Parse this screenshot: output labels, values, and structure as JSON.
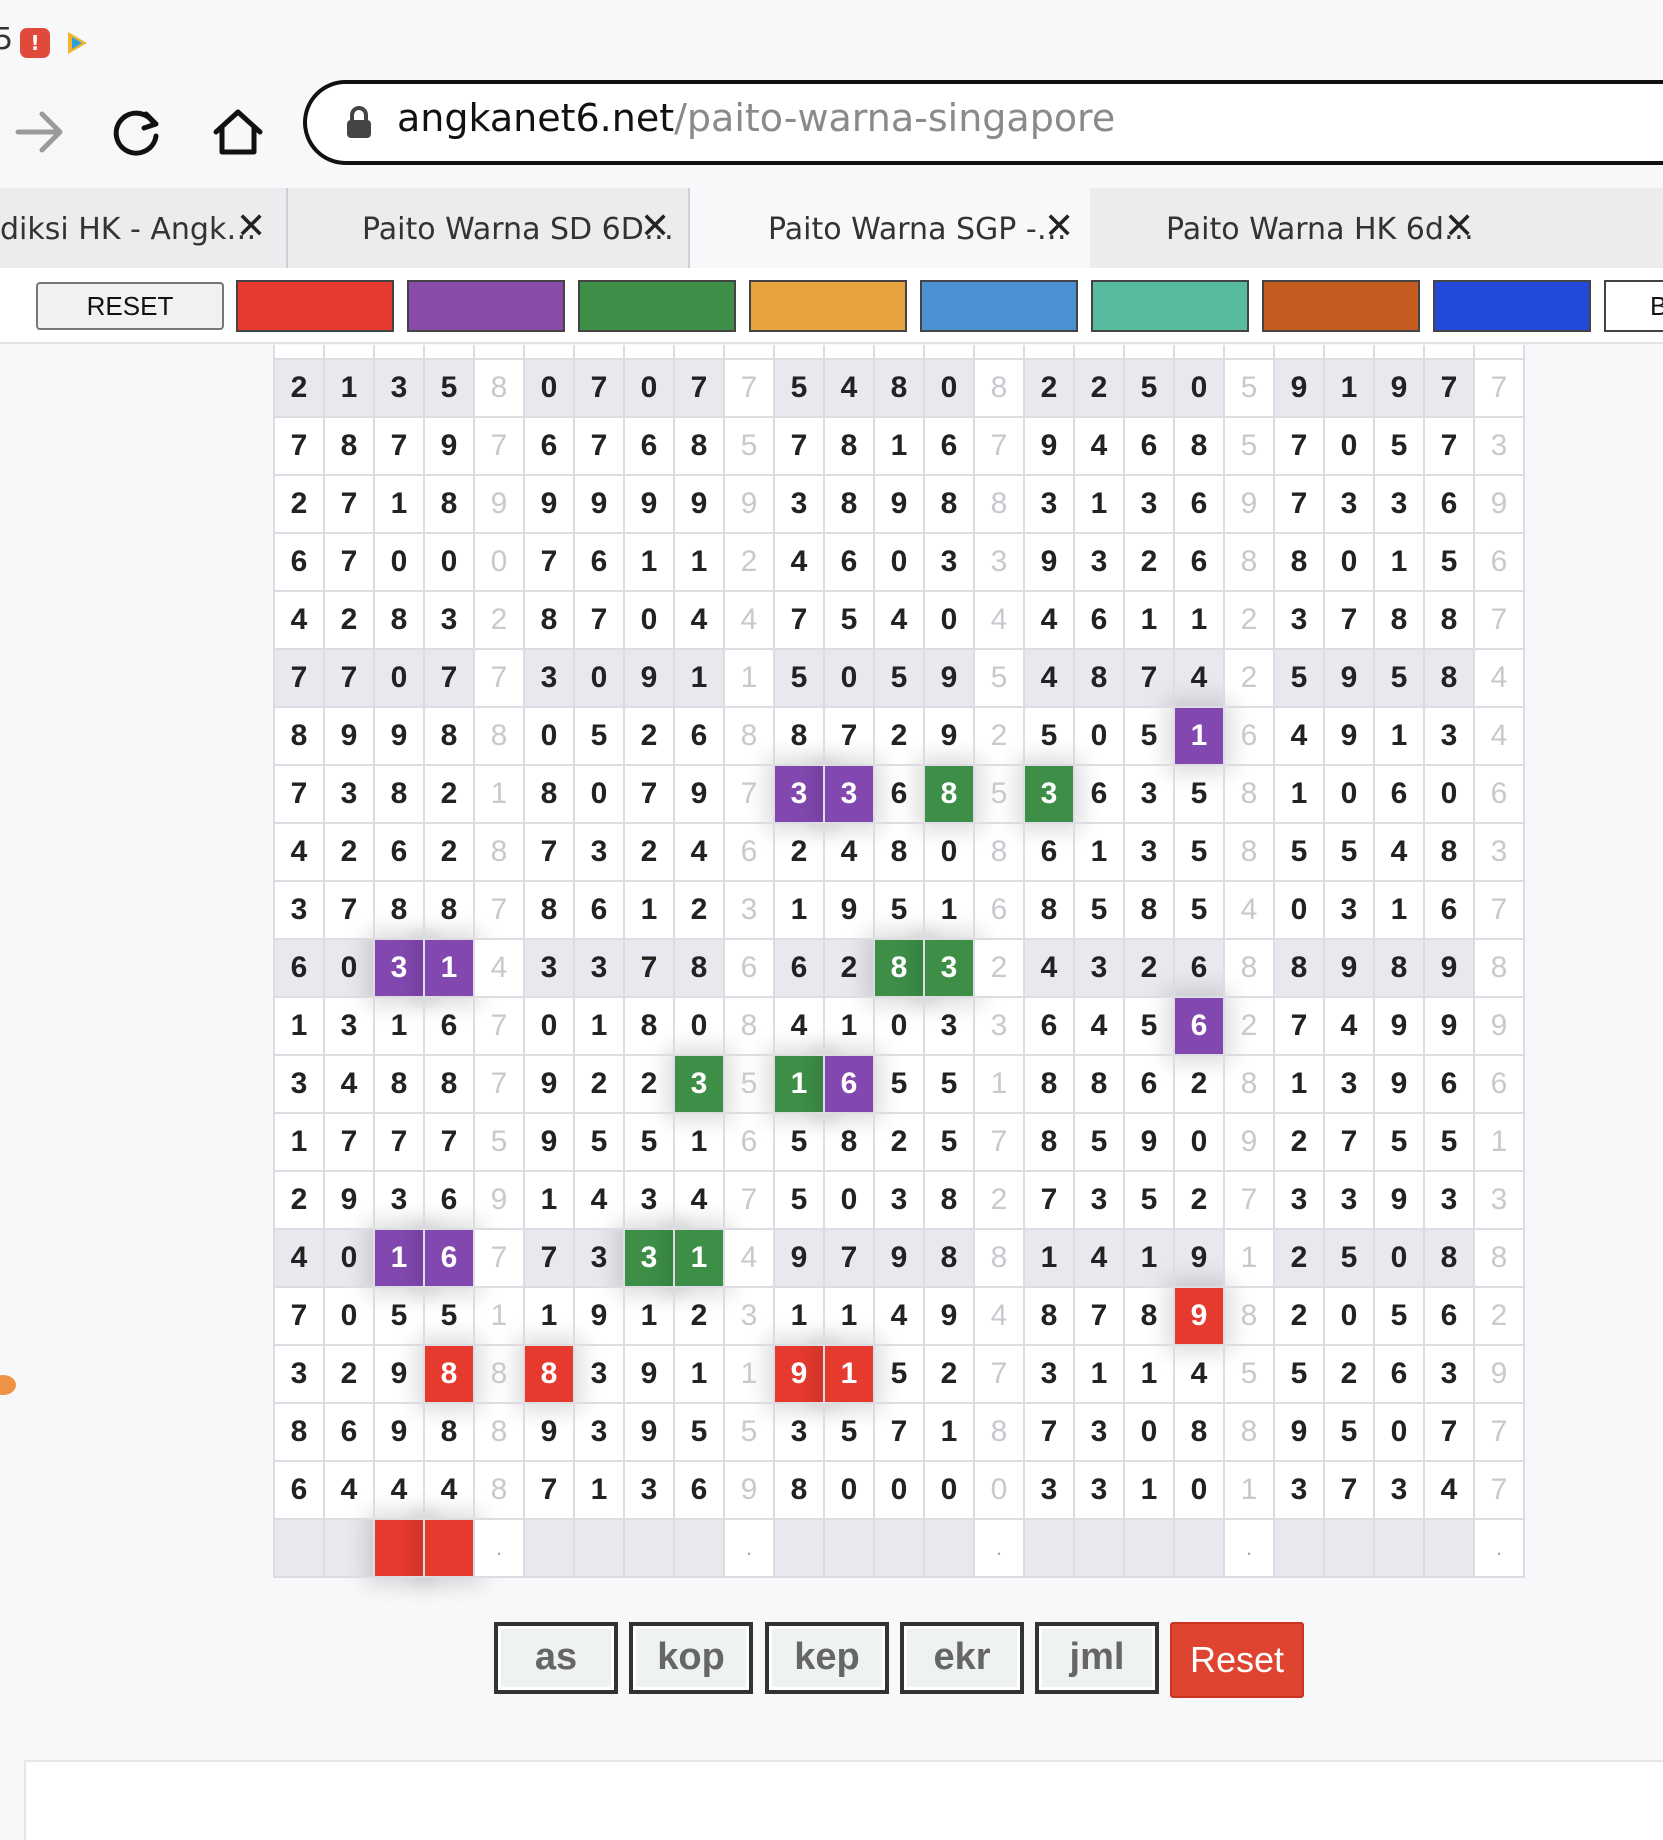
{
  "ext": {
    "count": "5",
    "badge": "!"
  },
  "address": {
    "host": "angkanet6.net",
    "path": "/paito-warna-singapore"
  },
  "tabs": [
    {
      "label": "diksi HK - Angk…",
      "active": false
    },
    {
      "label": "Paito Warna SD 6D…",
      "active": false
    },
    {
      "label": "Paito Warna SGP -…",
      "active": true
    },
    {
      "label": "Paito Warna HK 6d…",
      "active": false
    }
  ],
  "toolbar": {
    "reset_label": "RESET",
    "overflow_label": "B",
    "swatches": [
      "#e63a2e",
      "#8a4bab",
      "#3d8f48",
      "#e8a33e",
      "#4a90d2",
      "#58bb9f",
      "#c55d22",
      "#2249d8",
      "#ffffff"
    ]
  },
  "grid": {
    "rows": [
      {
        "shade": true,
        "cells": [
          "2",
          "1",
          "3",
          "5",
          "8",
          "0",
          "7",
          "0",
          "7",
          "7",
          "5",
          "4",
          "8",
          "0",
          "8",
          "2",
          "2",
          "5",
          "0",
          "5",
          "9",
          "1",
          "9",
          "7",
          "7"
        ]
      },
      {
        "shade": false,
        "cells": [
          "7",
          "8",
          "7",
          "9",
          "7",
          "6",
          "7",
          "6",
          "8",
          "5",
          "7",
          "8",
          "1",
          "6",
          "7",
          "9",
          "4",
          "6",
          "8",
          "5",
          "7",
          "0",
          "5",
          "7",
          "3"
        ]
      },
      {
        "shade": false,
        "cells": [
          "2",
          "7",
          "1",
          "8",
          "9",
          "9",
          "9",
          "9",
          "9",
          "9",
          "3",
          "8",
          "9",
          "8",
          "8",
          "3",
          "1",
          "3",
          "6",
          "9",
          "7",
          "3",
          "3",
          "6",
          "9"
        ]
      },
      {
        "shade": false,
        "cells": [
          "6",
          "7",
          "0",
          "0",
          "0",
          "7",
          "6",
          "1",
          "1",
          "2",
          "4",
          "6",
          "0",
          "3",
          "3",
          "9",
          "3",
          "2",
          "6",
          "8",
          "8",
          "0",
          "1",
          "5",
          "6"
        ]
      },
      {
        "shade": false,
        "cells": [
          "4",
          "2",
          "8",
          "3",
          "2",
          "8",
          "7",
          "0",
          "4",
          "4",
          "7",
          "5",
          "4",
          "0",
          "4",
          "4",
          "6",
          "1",
          "1",
          "2",
          "3",
          "7",
          "8",
          "8",
          "7"
        ]
      },
      {
        "shade": true,
        "cells": [
          "7",
          "7",
          "0",
          "7",
          "7",
          "3",
          "0",
          "9",
          "1",
          "1",
          "5",
          "0",
          "5",
          "9",
          "5",
          "4",
          "8",
          "7",
          "4",
          "2",
          "5",
          "9",
          "5",
          "8",
          "4"
        ]
      },
      {
        "shade": false,
        "cells": [
          "8",
          "9",
          "9",
          "8",
          "8",
          "0",
          "5",
          "2",
          "6",
          "8",
          "8",
          "7",
          "2",
          "9",
          "2",
          "5",
          "0",
          "5",
          "1",
          "6",
          "4",
          "9",
          "1",
          "3",
          "4"
        ]
      },
      {
        "shade": false,
        "cells": [
          "7",
          "3",
          "8",
          "2",
          "1",
          "8",
          "0",
          "7",
          "9",
          "7",
          "3",
          "3",
          "6",
          "8",
          "5",
          "3",
          "6",
          "3",
          "5",
          "8",
          "1",
          "0",
          "6",
          "0",
          "6"
        ]
      },
      {
        "shade": false,
        "cells": [
          "4",
          "2",
          "6",
          "2",
          "8",
          "7",
          "3",
          "2",
          "4",
          "6",
          "2",
          "4",
          "8",
          "0",
          "8",
          "6",
          "1",
          "3",
          "5",
          "8",
          "5",
          "5",
          "4",
          "8",
          "3"
        ]
      },
      {
        "shade": false,
        "cells": [
          "3",
          "7",
          "8",
          "8",
          "7",
          "8",
          "6",
          "1",
          "2",
          "3",
          "1",
          "9",
          "5",
          "1",
          "6",
          "8",
          "5",
          "8",
          "5",
          "4",
          "0",
          "3",
          "1",
          "6",
          "7"
        ]
      },
      {
        "shade": true,
        "cells": [
          "6",
          "0",
          "3",
          "1",
          "4",
          "3",
          "3",
          "7",
          "8",
          "6",
          "6",
          "2",
          "8",
          "3",
          "2",
          "4",
          "3",
          "2",
          "6",
          "8",
          "8",
          "9",
          "8",
          "9",
          "8"
        ]
      },
      {
        "shade": false,
        "cells": [
          "1",
          "3",
          "1",
          "6",
          "7",
          "0",
          "1",
          "8",
          "0",
          "8",
          "4",
          "1",
          "0",
          "3",
          "3",
          "6",
          "4",
          "5",
          "6",
          "2",
          "7",
          "4",
          "9",
          "9",
          "9"
        ]
      },
      {
        "shade": false,
        "cells": [
          "3",
          "4",
          "8",
          "8",
          "7",
          "9",
          "2",
          "2",
          "3",
          "5",
          "1",
          "6",
          "5",
          "5",
          "1",
          "8",
          "8",
          "6",
          "2",
          "8",
          "1",
          "3",
          "9",
          "6",
          "6"
        ]
      },
      {
        "shade": false,
        "cells": [
          "1",
          "7",
          "7",
          "7",
          "5",
          "9",
          "5",
          "5",
          "1",
          "6",
          "5",
          "8",
          "2",
          "5",
          "7",
          "8",
          "5",
          "9",
          "0",
          "9",
          "2",
          "7",
          "5",
          "5",
          "1"
        ]
      },
      {
        "shade": false,
        "cells": [
          "2",
          "9",
          "3",
          "6",
          "9",
          "1",
          "4",
          "3",
          "4",
          "7",
          "5",
          "0",
          "3",
          "8",
          "2",
          "7",
          "3",
          "5",
          "2",
          "7",
          "3",
          "3",
          "9",
          "3",
          "3"
        ]
      },
      {
        "shade": true,
        "cells": [
          "4",
          "0",
          "1",
          "6",
          "7",
          "7",
          "3",
          "3",
          "1",
          "4",
          "9",
          "7",
          "9",
          "8",
          "8",
          "1",
          "4",
          "1",
          "9",
          "1",
          "2",
          "5",
          "0",
          "8",
          "8"
        ]
      },
      {
        "shade": false,
        "cells": [
          "7",
          "0",
          "5",
          "5",
          "1",
          "1",
          "9",
          "1",
          "2",
          "3",
          "1",
          "1",
          "4",
          "9",
          "4",
          "8",
          "7",
          "8",
          "9",
          "8",
          "2",
          "0",
          "5",
          "6",
          "2"
        ]
      },
      {
        "shade": false,
        "cells": [
          "3",
          "2",
          "9",
          "8",
          "8",
          "8",
          "3",
          "9",
          "1",
          "1",
          "9",
          "1",
          "5",
          "2",
          "7",
          "3",
          "1",
          "1",
          "4",
          "5",
          "5",
          "2",
          "6",
          "3",
          "9"
        ]
      },
      {
        "shade": false,
        "cells": [
          "8",
          "6",
          "9",
          "8",
          "8",
          "9",
          "3",
          "9",
          "5",
          "5",
          "3",
          "5",
          "7",
          "1",
          "8",
          "7",
          "3",
          "0",
          "8",
          "8",
          "9",
          "5",
          "0",
          "7",
          "7"
        ]
      },
      {
        "shade": false,
        "cells": [
          "6",
          "4",
          "4",
          "4",
          "8",
          "7",
          "1",
          "3",
          "6",
          "9",
          "8",
          "0",
          "0",
          "0",
          "0",
          "3",
          "3",
          "1",
          "0",
          "1",
          "3",
          "7",
          "3",
          "4",
          "7"
        ]
      }
    ],
    "last_row": [
      "",
      "",
      "",
      "",
      ".",
      "",
      "",
      "",
      "",
      ".",
      "",
      "",
      "",
      "",
      ".",
      "",
      "",
      "",
      "",
      ".",
      "",
      "",
      "",
      "",
      "."
    ],
    "highlights": [
      {
        "row": 6,
        "col": 18,
        "color": "purple"
      },
      {
        "row": 7,
        "col": 10,
        "color": "purple"
      },
      {
        "row": 7,
        "col": 11,
        "color": "purple"
      },
      {
        "row": 7,
        "col": 13,
        "color": "green"
      },
      {
        "row": 7,
        "col": 15,
        "color": "green"
      },
      {
        "row": 10,
        "col": 2,
        "color": "purple"
      },
      {
        "row": 10,
        "col": 3,
        "color": "purple"
      },
      {
        "row": 10,
        "col": 12,
        "color": "green"
      },
      {
        "row": 10,
        "col": 13,
        "color": "green"
      },
      {
        "row": 11,
        "col": 18,
        "color": "purple"
      },
      {
        "row": 12,
        "col": 8,
        "color": "green"
      },
      {
        "row": 12,
        "col": 10,
        "color": "green"
      },
      {
        "row": 12,
        "col": 11,
        "color": "purple"
      },
      {
        "row": 15,
        "col": 2,
        "color": "purple"
      },
      {
        "row": 15,
        "col": 3,
        "color": "purple"
      },
      {
        "row": 15,
        "col": 7,
        "color": "green"
      },
      {
        "row": 15,
        "col": 8,
        "color": "green"
      },
      {
        "row": 16,
        "col": 18,
        "color": "red"
      },
      {
        "row": 17,
        "col": 3,
        "color": "red"
      },
      {
        "row": 17,
        "col": 5,
        "color": "red"
      },
      {
        "row": 17,
        "col": 10,
        "color": "red"
      },
      {
        "row": 17,
        "col": 11,
        "color": "red"
      },
      {
        "row": 20,
        "col": 2,
        "color": "red"
      },
      {
        "row": 20,
        "col": 3,
        "color": "red"
      }
    ]
  },
  "buttons": {
    "as": "as",
    "kop": "kop",
    "kep": "kep",
    "ekr": "ekr",
    "jml": "jml",
    "reset": "Reset"
  }
}
